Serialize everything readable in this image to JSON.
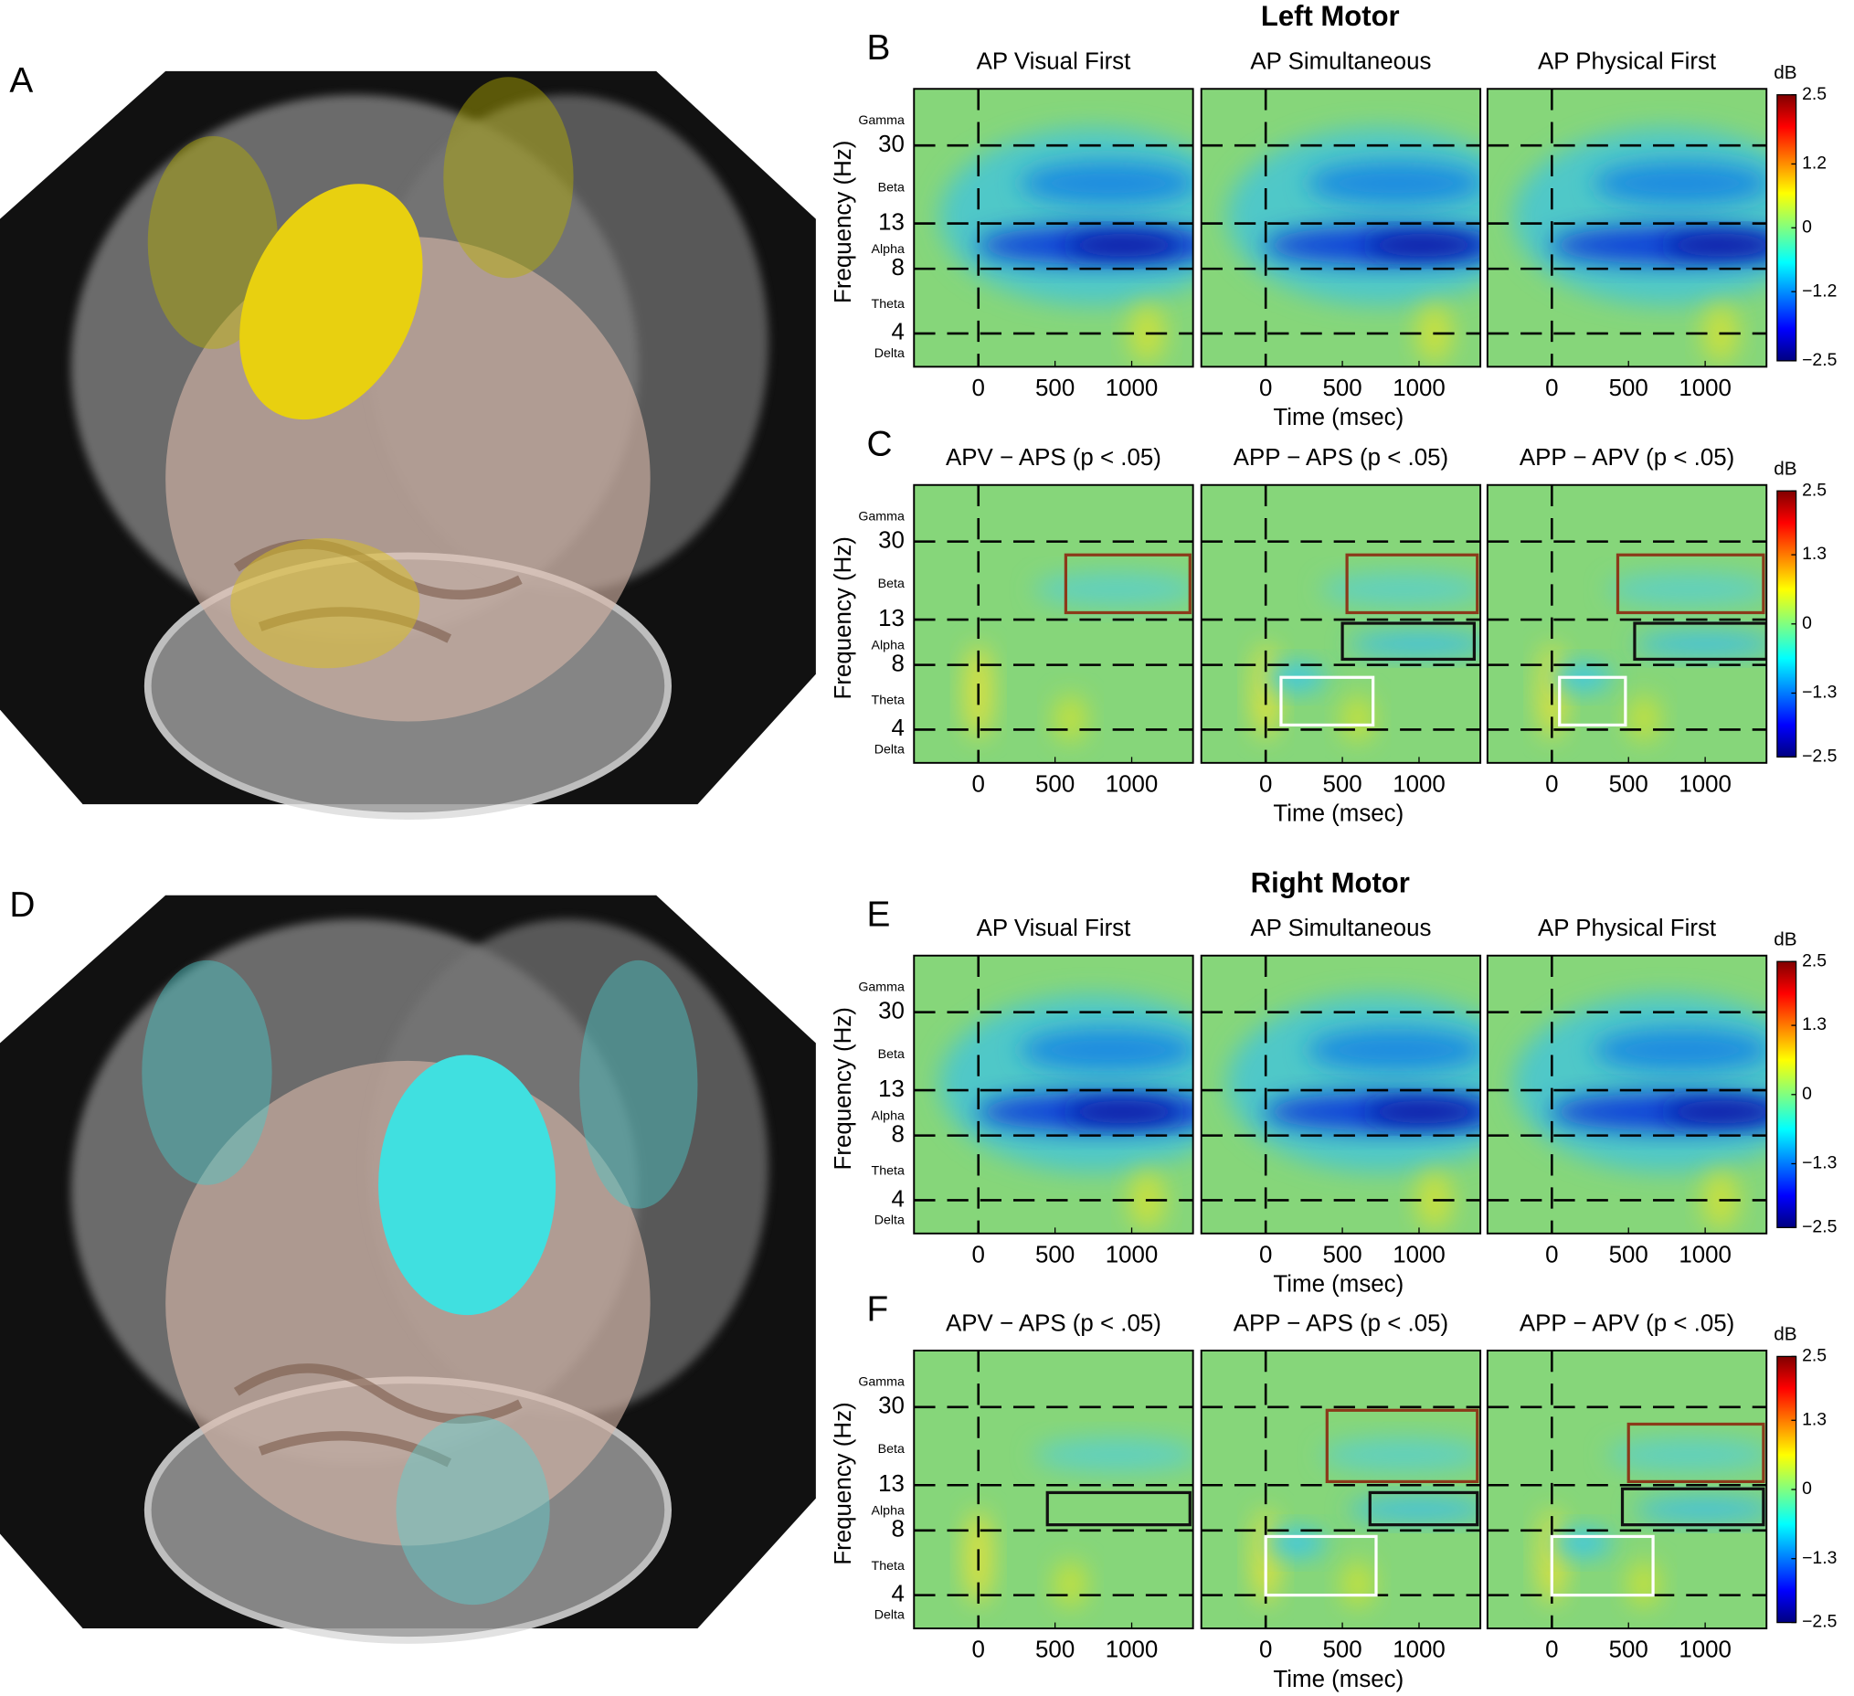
{
  "brain_letters": [
    "A",
    "D"
  ],
  "axes": {
    "ylabel": "Frequency (Hz)",
    "yticks": [
      30,
      13,
      8,
      4
    ],
    "ylim": [
      2.8,
      55
    ],
    "log_y": true,
    "bands": [
      "Gamma",
      "Beta",
      "Alpha",
      "Theta",
      "Delta"
    ],
    "xticks": [
      0,
      500,
      1000
    ],
    "xlim": [
      -420,
      1400
    ]
  },
  "groups": [
    {
      "title": "Left Motor",
      "rows": [
        {
          "letter": "B",
          "titles": [
            "AP Visual First",
            "AP Simultaneous",
            "AP Physical First"
          ],
          "xlabel": "Time (msec)",
          "colorbar": {
            "label": "dB",
            "clim": [
              -2.5,
              2.5
            ],
            "ticks": [
              2.5,
              1.2,
              0,
              {
                "value": -1.2,
                "label": "−1.2"
              },
              {
                "value": -2.5,
                "label": "−2.5"
              }
            ]
          }
        },
        {
          "letter": "C",
          "titles": [
            "APV − APS (p < .05)",
            "APP − APS (p < .05)",
            "APP − APV (p < .05)"
          ],
          "xlabel": "Time (msec)",
          "colorbar": {
            "label": "dB",
            "clim": [
              -2.5,
              2.5
            ],
            "ticks": [
              2.5,
              1.3,
              0,
              {
                "value": -1.3,
                "label": "−1.3"
              },
              {
                "value": -2.5,
                "label": "−2.5"
              }
            ]
          }
        }
      ]
    },
    {
      "title": "Right Motor",
      "rows": [
        {
          "letter": "E",
          "titles": [
            "AP Visual First",
            "AP Simultaneous",
            "AP Physical First"
          ],
          "xlabel": "Time (msec)",
          "colorbar": {
            "label": "dB",
            "clim": [
              -2.5,
              2.5
            ],
            "ticks": [
              2.5,
              1.3,
              0,
              {
                "value": -1.3,
                "label": "−1.3"
              },
              {
                "value": -2.5,
                "label": "−2.5"
              }
            ]
          }
        },
        {
          "letter": "F",
          "titles": [
            "APV − APS (p < .05)",
            "APP − APS (p < .05)",
            "APP − APV (p < .05)"
          ],
          "xlabel": "Time (msec)",
          "colorbar": {
            "label": "dB",
            "clim": [
              -2.5,
              2.5
            ],
            "ticks": [
              2.5,
              1.3,
              0,
              {
                "value": -1.3,
                "label": "−1.3"
              },
              {
                "value": -2.5,
                "label": "−2.5"
              }
            ]
          }
        }
      ]
    }
  ]
}
